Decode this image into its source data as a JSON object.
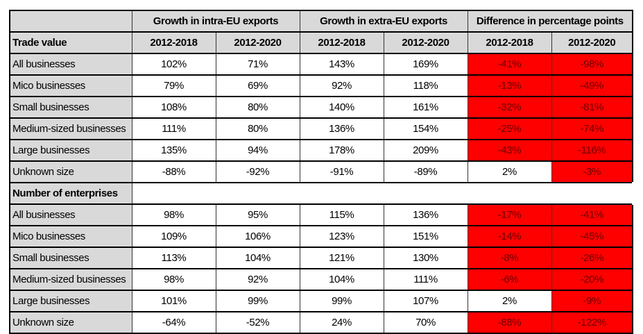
{
  "table": {
    "group_headers": [
      {
        "label": "Growth in intra-EU exports"
      },
      {
        "label": "Growth in extra-EU exports"
      },
      {
        "label": "Difference in percentage points"
      }
    ],
    "period_headers": [
      "2012-2018",
      "2012-2020",
      "2012-2018",
      "2012-2020",
      "2012-2018",
      "2012-2020"
    ],
    "sections": [
      {
        "title": "Trade value",
        "rows": [
          {
            "label": "All businesses",
            "values": [
              "102%",
              "71%",
              "143%",
              "169%",
              "-41%",
              "-98%"
            ],
            "highlight": [
              false,
              false,
              false,
              false,
              true,
              true
            ]
          },
          {
            "label": "Mico businesses",
            "values": [
              "79%",
              "69%",
              "92%",
              "118%",
              "-13%",
              "-49%"
            ],
            "highlight": [
              false,
              false,
              false,
              false,
              true,
              true
            ]
          },
          {
            "label": "Small businesses",
            "values": [
              "108%",
              "80%",
              "140%",
              "161%",
              "-32%",
              "-81%"
            ],
            "highlight": [
              false,
              false,
              false,
              false,
              true,
              true
            ]
          },
          {
            "label": "Medium-sized businesses",
            "values": [
              "111%",
              "80%",
              "136%",
              "154%",
              "-25%",
              "-74%"
            ],
            "highlight": [
              false,
              false,
              false,
              false,
              true,
              true
            ]
          },
          {
            "label": "Large businesses",
            "values": [
              "135%",
              "94%",
              "178%",
              "209%",
              "-43%",
              "-116%"
            ],
            "highlight": [
              false,
              false,
              false,
              false,
              true,
              true
            ]
          },
          {
            "label": "Unknown size",
            "values": [
              "-88%",
              "-92%",
              "-91%",
              "-89%",
              "2%",
              "-3%"
            ],
            "highlight": [
              false,
              false,
              false,
              false,
              false,
              true
            ]
          }
        ]
      },
      {
        "title": "Number of enterprises",
        "rows": [
          {
            "label": "All businesses",
            "values": [
              "98%",
              "95%",
              "115%",
              "136%",
              "-17%",
              "-41%"
            ],
            "highlight": [
              false,
              false,
              false,
              false,
              true,
              true
            ]
          },
          {
            "label": "Mico businesses",
            "values": [
              "109%",
              "106%",
              "123%",
              "151%",
              "-14%",
              "-45%"
            ],
            "highlight": [
              false,
              false,
              false,
              false,
              true,
              true
            ]
          },
          {
            "label": "Small businesses",
            "values": [
              "113%",
              "104%",
              "121%",
              "130%",
              "-8%",
              "-26%"
            ],
            "highlight": [
              false,
              false,
              false,
              false,
              true,
              true
            ]
          },
          {
            "label": "Medium-sized businesses",
            "values": [
              "98%",
              "92%",
              "104%",
              "111%",
              "-6%",
              "-20%"
            ],
            "highlight": [
              false,
              false,
              false,
              false,
              true,
              true
            ]
          },
          {
            "label": "Large businesses",
            "values": [
              "101%",
              "99%",
              "99%",
              "107%",
              "2%",
              "-9%"
            ],
            "highlight": [
              false,
              false,
              false,
              false,
              false,
              true
            ]
          },
          {
            "label": "Unknown size",
            "values": [
              "-64%",
              "-52%",
              "24%",
              "70%",
              "-88%",
              "-122%"
            ],
            "highlight": [
              false,
              false,
              false,
              false,
              true,
              true
            ]
          }
        ]
      }
    ],
    "colors": {
      "header_bg": "#d9d9d9",
      "negative_highlight": "#ff0000",
      "cell_bg": "#ffffff"
    }
  }
}
